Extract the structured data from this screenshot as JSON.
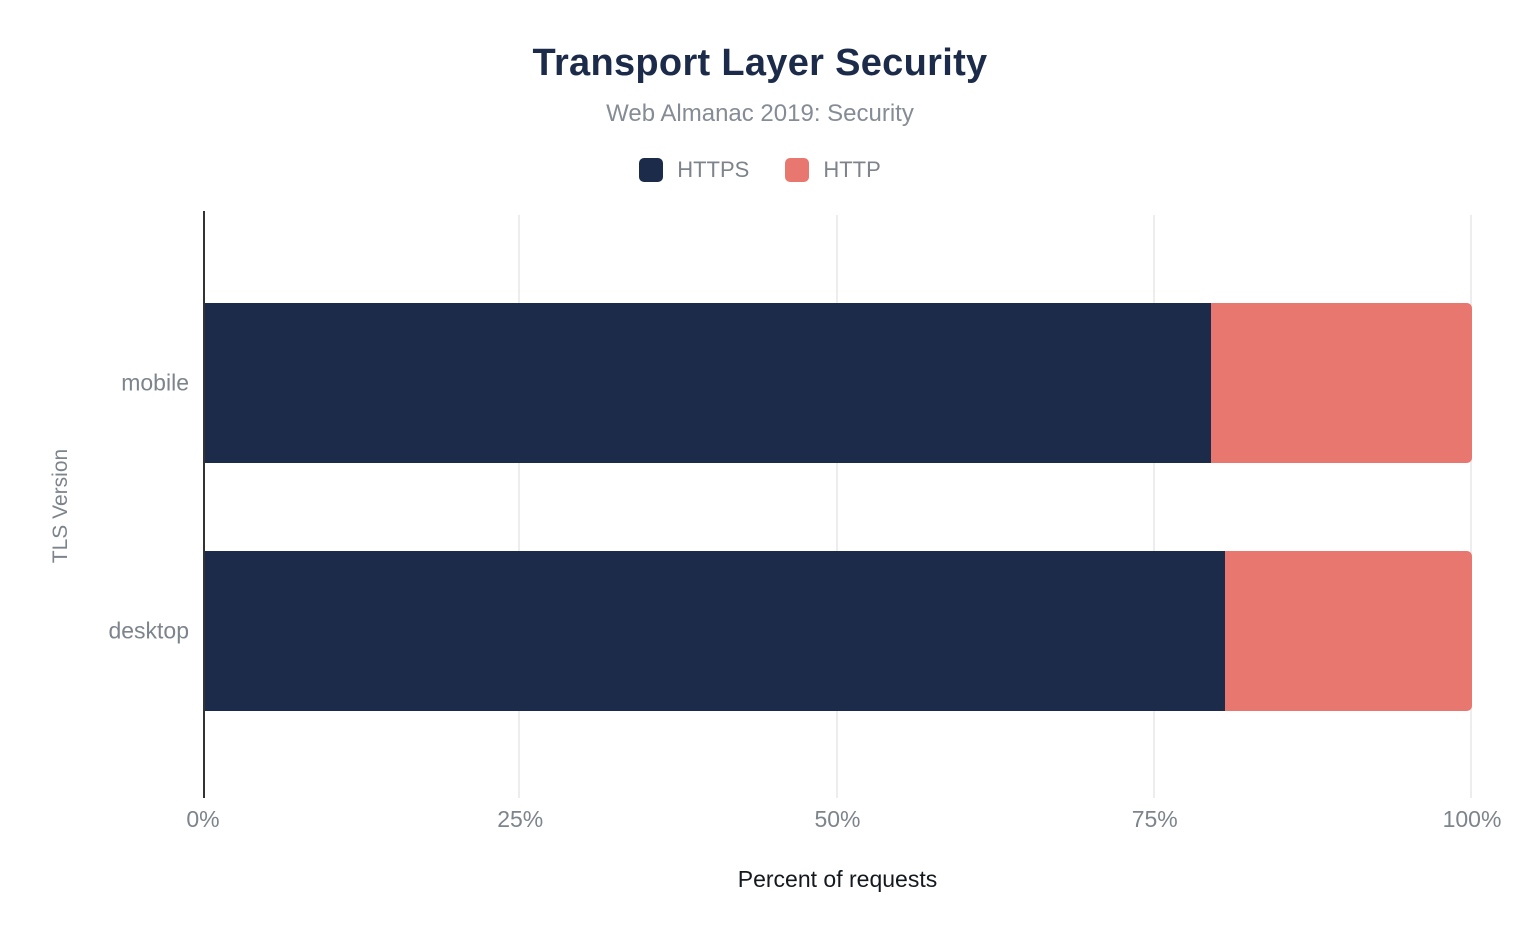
{
  "chart_data": {
    "type": "bar",
    "orientation": "horizontal",
    "stacked": true,
    "title": "Transport Layer Security",
    "subtitle": "Web Almanac 2019: Security",
    "categories": [
      "mobile",
      "desktop"
    ],
    "series": [
      {
        "name": "HTTPS",
        "color": "#1c2b4a",
        "values": [
          79.4,
          80.5
        ]
      },
      {
        "name": "HTTP",
        "color": "#e8786f",
        "values": [
          20.6,
          19.5
        ]
      }
    ],
    "xlabel": "Percent of requests",
    "ylabel": "TLS Version",
    "xlim": [
      0,
      100
    ],
    "xticks": [
      {
        "label": "0%",
        "value": 0
      },
      {
        "label": "25%",
        "value": 25
      },
      {
        "label": "50%",
        "value": 50
      },
      {
        "label": "75%",
        "value": 75
      },
      {
        "label": "100%",
        "value": 100
      }
    ],
    "grid": "vertical",
    "legend_position": "top"
  },
  "colors": {
    "https_navy": "#1c2b4a",
    "http_salmon": "#e8786f",
    "title_text": "#1c2b4a",
    "muted_text": "#858c95",
    "axis_text": "#7d848c",
    "dark_text": "#14181f",
    "axis_line": "#333333",
    "gridline": "#ededed",
    "background": "#ffffff"
  }
}
